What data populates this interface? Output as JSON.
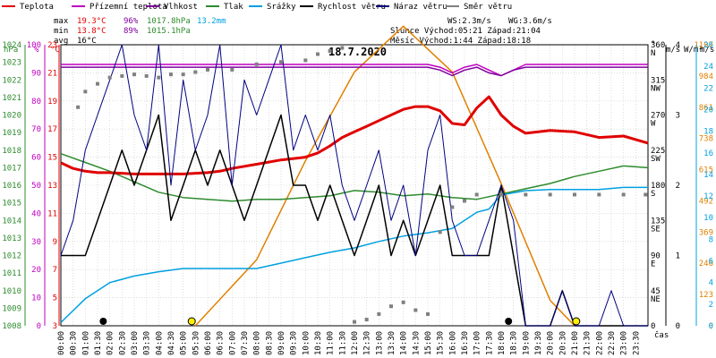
{
  "title": "18.7.2020",
  "legend": [
    {
      "label": "Teplota",
      "color": "#e00000"
    },
    {
      "label": "Přízemní teplota",
      "color": "#c000c0"
    },
    {
      "label": "Vlhkost",
      "color": "#8000a0"
    },
    {
      "label": "Tlak",
      "color": "#2e8b2e"
    },
    {
      "label": "Srážky",
      "color": "#00a0e0"
    },
    {
      "label": "Rychlost větru",
      "color": "#000000"
    },
    {
      "label": "Náraz větru",
      "color": "#000080"
    },
    {
      "label": "Směr větru",
      "color": "#808080"
    }
  ],
  "stats": {
    "max_label": "max",
    "max_temp": "19.3°C",
    "max_hum": "96%",
    "max_press": "1017.8hPa",
    "max_rain": "13.2mm",
    "min_label": "min",
    "min_temp": "13.8°C",
    "min_hum": "89%",
    "min_press": "1015.1hPa",
    "avg_label": "avg",
    "avg_temp": "16°C",
    "ws": "WS:2.3m/s",
    "wg": "WG:3.6m/s",
    "sun": "Slunce Východ:05:21  Západ:21:04",
    "moon": "Měsíc  Východ:1:44  Západ:18:18"
  },
  "unit_labels": {
    "hpa": "hPa",
    "pct": "%",
    "degc": "°C",
    "deg": "°",
    "ms1": "m/s",
    "wm2": "W/m²",
    "ms2": "m/s",
    "cas": "čas"
  },
  "axis_labels": {
    "hpa": [
      "1008",
      "1009",
      "1010",
      "1011",
      "1012",
      "1013",
      "1014",
      "1015",
      "1016",
      "1017",
      "1018",
      "1019",
      "1020",
      "1021",
      "1022",
      "1023",
      "1024"
    ],
    "pct": [
      "0",
      "10",
      "20",
      "30",
      "40",
      "50",
      "60",
      "70",
      "80",
      "90",
      "100"
    ],
    "degc": [
      "3",
      "5",
      "7",
      "9",
      "11",
      "13",
      "15",
      "17",
      "19",
      "21",
      "23"
    ],
    "dir": [
      "0",
      "45 NE",
      "90 E",
      "135 SE",
      "180 S",
      "225 SW",
      "270 W",
      "315 NW",
      "360 N"
    ],
    "ms_left": [
      "0",
      "1",
      "2",
      "3",
      "4"
    ],
    "solar": [
      "0",
      "123",
      "246",
      "369",
      "492",
      "615",
      "738",
      "861",
      "984",
      "1107"
    ],
    "ms_right": [
      "0",
      "2",
      "4",
      "6",
      "8",
      "10",
      "12",
      "14",
      "16",
      "18",
      "20",
      "22",
      "24",
      "26"
    ],
    "time": [
      "00:00",
      "00:30",
      "01:00",
      "01:30",
      "02:00",
      "02:30",
      "03:00",
      "03:30",
      "04:00",
      "04:30",
      "05:00",
      "05:30",
      "06:00",
      "06:30",
      "07:00",
      "07:30",
      "08:00",
      "08:30",
      "09:00",
      "09:30",
      "10:00",
      "10:30",
      "11:00",
      "11:30",
      "12:00",
      "12:30",
      "13:00",
      "13:30",
      "14:00",
      "14:30",
      "15:00",
      "15:30",
      "16:00",
      "16:30",
      "17:00",
      "17:30",
      "18:00",
      "18:30",
      "19:00",
      "19:30",
      "20:00",
      "20:30",
      "21:00",
      "21:30",
      "22:00",
      "22:30",
      "23:00",
      "23:30"
    ]
  },
  "colors": {
    "temp": "#e00000",
    "dew": "#c000c0",
    "hum": "#8000a0",
    "press": "#2e8b2e",
    "rain": "#00a0e0",
    "wind": "#000000",
    "gust": "#000080",
    "dir": "#808080",
    "solar": "#e08000",
    "grid": "#c8c8c8",
    "sun": "#ffee00"
  },
  "chart_data": {
    "type": "line",
    "title": "18.7.2020",
    "x_unit": "hours",
    "series": [
      {
        "name": "Teplota",
        "unit": "°C",
        "x": [
          0,
          0.5,
          1,
          1.5,
          2,
          3,
          4,
          5,
          6,
          6.5,
          7,
          8,
          9,
          10,
          10.5,
          11,
          11.5,
          12,
          12.5,
          13,
          13.5,
          14,
          14.5,
          15,
          15.5,
          16,
          16.5,
          17,
          17.5,
          18,
          18.5,
          19,
          20,
          21,
          22,
          23,
          24
        ],
        "y": [
          14.6,
          14.2,
          14.0,
          13.9,
          13.9,
          13.8,
          13.8,
          13.8,
          13.9,
          14.0,
          14.2,
          14.5,
          14.8,
          15.0,
          15.3,
          15.8,
          16.4,
          16.8,
          17.2,
          17.6,
          18.0,
          18.4,
          18.6,
          18.6,
          18.3,
          17.4,
          17.3,
          18.5,
          19.3,
          18.0,
          17.2,
          16.7,
          16.9,
          16.8,
          16.4,
          16.5,
          16.0
        ]
      },
      {
        "name": "Přízemní teplota",
        "unit": "%",
        "x": [
          0,
          1,
          2,
          3,
          4,
          5,
          6,
          7,
          8,
          9,
          10,
          11,
          12,
          13,
          14,
          15,
          15.5,
          16,
          16.5,
          17,
          17.5,
          18,
          18.5,
          19,
          20,
          21,
          22,
          23,
          24
        ],
        "y": [
          93,
          93,
          93,
          93,
          93,
          93,
          93,
          93,
          93,
          93,
          93,
          93,
          93,
          93,
          93,
          93,
          92,
          90,
          92,
          93,
          91,
          89,
          91,
          93,
          93,
          93,
          93,
          93,
          93
        ]
      },
      {
        "name": "Vlhkost",
        "unit": "%",
        "x": [
          0,
          2,
          4,
          6,
          8,
          10,
          12,
          14,
          15,
          15.5,
          16,
          16.5,
          17,
          17.5,
          18,
          18.5,
          19,
          20,
          24
        ],
        "y": [
          92,
          92,
          92,
          92,
          92,
          92,
          92,
          92,
          92,
          91,
          89,
          91,
          92,
          90,
          89,
          91,
          92,
          92,
          92
        ]
      },
      {
        "name": "Tlak",
        "unit": "hPa",
        "x": [
          0,
          1,
          2,
          3,
          4,
          5,
          6,
          7,
          8,
          9,
          10,
          11,
          12,
          13,
          14,
          15,
          16,
          17,
          18,
          19,
          20,
          21,
          22,
          23,
          24
        ],
        "y": [
          1017.8,
          1017.3,
          1016.8,
          1016.2,
          1015.6,
          1015.3,
          1015.2,
          1015.1,
          1015.2,
          1015.2,
          1015.3,
          1015.4,
          1015.7,
          1015.6,
          1015.4,
          1015.5,
          1015.3,
          1015.2,
          1015.5,
          1015.8,
          1016.1,
          1016.5,
          1016.8,
          1017.1,
          1017.0
        ]
      },
      {
        "name": "Srážky",
        "unit": "mm",
        "x": [
          0,
          1,
          2,
          3,
          4,
          5,
          6,
          7,
          8,
          9,
          10,
          11,
          12,
          13,
          14,
          15,
          16,
          17,
          17.5,
          18,
          19,
          20,
          21,
          22,
          23,
          24
        ],
        "y": [
          0.3,
          2.5,
          4.0,
          4.6,
          5.0,
          5.3,
          5.3,
          5.3,
          5.3,
          5.8,
          6.3,
          6.8,
          7.2,
          7.8,
          8.3,
          8.6,
          9.0,
          10.5,
          10.8,
          12.1,
          12.5,
          12.6,
          12.6,
          12.6,
          12.8,
          12.8
        ]
      },
      {
        "name": "Rychlost větru",
        "unit": "m/s",
        "x": [
          0,
          0.5,
          1,
          1.5,
          2,
          2.5,
          3,
          3.5,
          4,
          4.5,
          5,
          5.5,
          6,
          6.5,
          7,
          7.5,
          8,
          8.5,
          9,
          9.5,
          10,
          10.5,
          11,
          11.5,
          12,
          12.5,
          13,
          13.5,
          14,
          14.5,
          15,
          15.5,
          16,
          16.5,
          17,
          17.5,
          18,
          18.5,
          19,
          19.5,
          20,
          20.5,
          21,
          21.5,
          22,
          22.5,
          23,
          23.5,
          24
        ],
        "y": [
          1,
          1,
          1,
          1.5,
          2,
          2.5,
          2,
          2.5,
          3,
          1.5,
          2,
          2.5,
          2,
          2.5,
          2,
          1.5,
          2,
          2.5,
          3,
          2,
          2,
          1.5,
          2,
          1.5,
          1,
          1.5,
          2,
          1,
          1.5,
          1,
          1.5,
          2,
          1,
          1,
          1,
          1,
          2,
          1,
          0,
          0,
          0,
          0.5,
          0,
          0,
          0,
          0,
          0,
          0,
          0
        ]
      },
      {
        "name": "Náraz větru",
        "unit": "m/s",
        "x": [
          0,
          0.5,
          1,
          1.5,
          2,
          2.5,
          3,
          3.5,
          4,
          4.5,
          5,
          5.5,
          6,
          6.5,
          7,
          7.5,
          8,
          8.5,
          9,
          9.5,
          10,
          10.5,
          11,
          11.5,
          12,
          12.5,
          13,
          13.5,
          14,
          14.5,
          15,
          15.5,
          16,
          16.5,
          17,
          17.5,
          18,
          18.5,
          19,
          19.5,
          20,
          20.5,
          21,
          21.5,
          22,
          22.5,
          23,
          23.5,
          24
        ],
        "y": [
          1,
          1.5,
          2.5,
          3,
          3.5,
          4,
          3,
          2.5,
          4,
          2,
          3.5,
          2.5,
          3,
          4,
          2,
          3.5,
          3,
          3.5,
          4,
          2.5,
          3,
          2.5,
          3,
          2,
          1.5,
          2,
          2.5,
          1.5,
          2,
          1,
          2.5,
          3,
          1.5,
          1,
          1,
          1.5,
          2,
          1.5,
          0,
          0,
          0,
          0.5,
          0,
          0,
          0,
          0.5,
          0,
          0,
          0
        ]
      },
      {
        "name": "Směr větru",
        "unit": "°",
        "x": [
          0.7,
          1,
          1.5,
          2,
          2.5,
          3,
          3.5,
          4,
          4.5,
          5,
          5.5,
          6,
          7,
          8,
          9,
          10,
          10.5,
          11,
          11.5,
          12,
          12.5,
          13,
          13.5,
          14,
          14.5,
          15,
          15.5,
          16,
          16.5,
          17,
          18,
          19,
          20,
          21,
          22,
          23,
          23.9
        ],
        "y": [
          280,
          300,
          310,
          318,
          320,
          322,
          320,
          318,
          322,
          322,
          325,
          328,
          328,
          335,
          338,
          340,
          348,
          352,
          356,
          5,
          8,
          15,
          25,
          30,
          20,
          15,
          120,
          152,
          160,
          168,
          168,
          168,
          168,
          168,
          168,
          168,
          168
        ]
      }
    ],
    "solar": {
      "name": "Solar",
      "unit": "W/m²",
      "x": [
        5.5,
        8,
        10,
        12,
        14,
        16,
        18,
        20,
        21
      ],
      "y": [
        0,
        260,
        650,
        1000,
        1180,
        1000,
        560,
        100,
        0
      ]
    },
    "sun_markers": [
      {
        "label": "Východ",
        "time": "05:21"
      },
      {
        "label": "Západ",
        "time": "21:04"
      }
    ],
    "moon_markers": [
      {
        "label": "Východ",
        "time": "1:44"
      },
      {
        "label": "Západ",
        "time": "18:18"
      }
    ]
  }
}
